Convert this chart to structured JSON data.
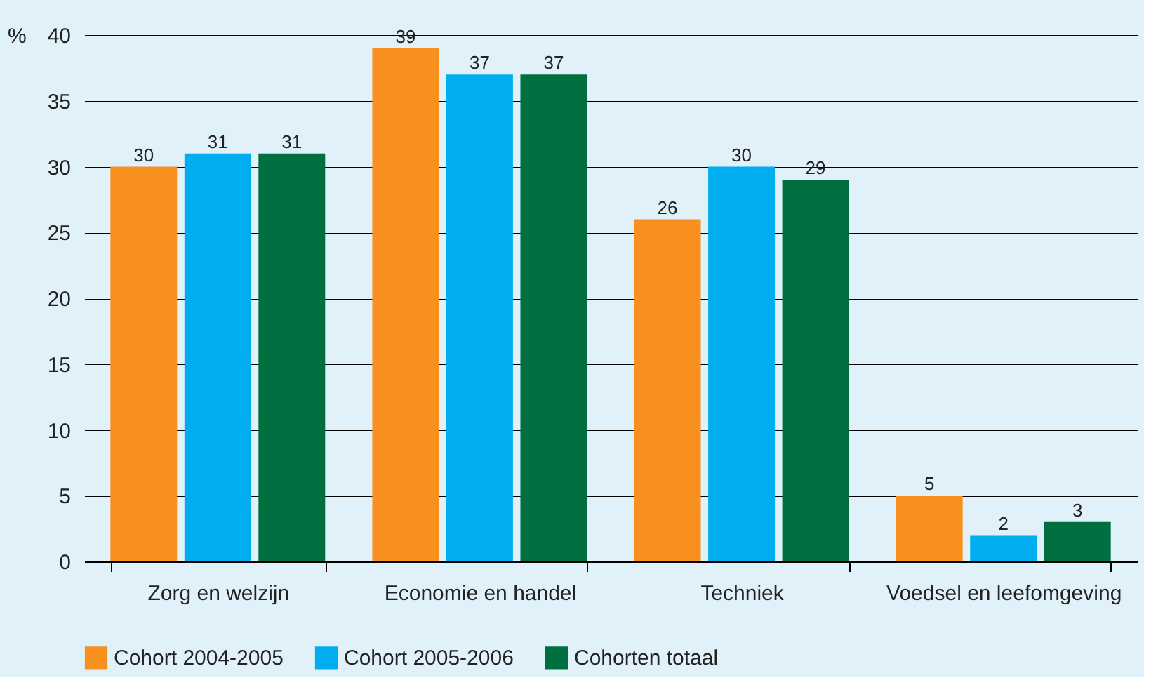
{
  "chart_data": {
    "type": "bar",
    "ylabel": "%",
    "categories": [
      "Zorg en welzijn",
      "Economie en handel",
      "Techniek",
      "Voedsel en leefomgeving"
    ],
    "series": [
      {
        "name": "Cohort 2004-2005",
        "color": "#f7901e",
        "values": [
          30,
          39,
          26,
          5
        ]
      },
      {
        "name": "Cohort 2005-2006",
        "color": "#00aeef",
        "values": [
          31,
          37,
          30,
          2
        ]
      },
      {
        "name": "Cohorten totaal",
        "color": "#006f3f",
        "values": [
          31,
          37,
          29,
          3
        ]
      }
    ],
    "ylim": [
      0,
      40
    ],
    "yticks": [
      0,
      5,
      10,
      15,
      20,
      25,
      30,
      35,
      40
    ],
    "grid": "y",
    "legend": "bottom",
    "data_labels": true
  }
}
